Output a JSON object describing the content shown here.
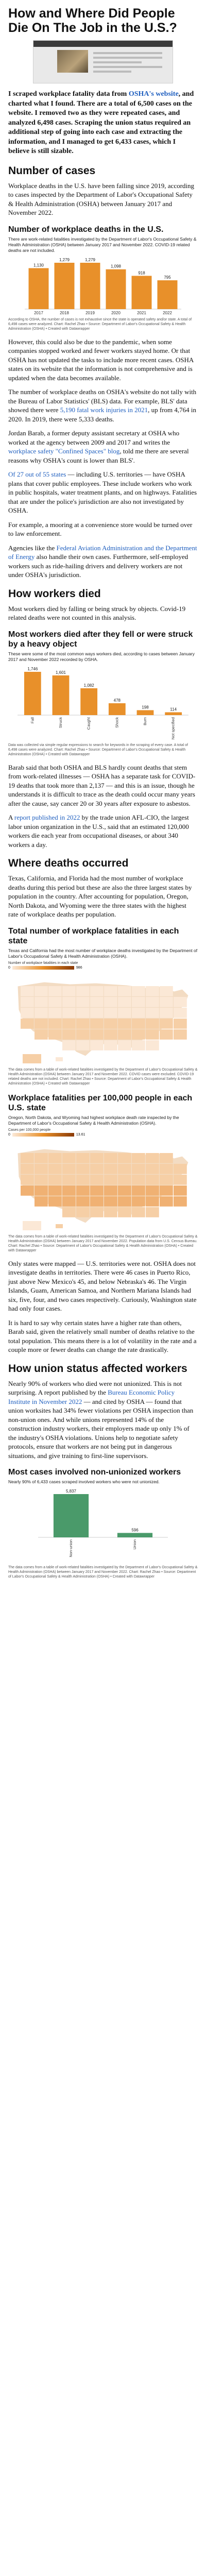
{
  "article": {
    "title": "How and Where Did People Die On The Job in the U.S.?",
    "intro_pre": "I scraped workplace fatality data from ",
    "intro_link": "OSHA's website",
    "intro_post": ", and charted what I found. There are a total of 6,500 cases on the website. I removed two as they were repeated cases, and analyzed 6,498 cases. Scraping the union status required an additional step of going into each case and extracting the information, and I managed to get 6,433 cases, which I believe is still sizable."
  },
  "s1": {
    "heading": "Number of cases",
    "p1": "Workplace deaths in the U.S. have been falling since 2019, according to cases inspected by the Department of Labor's Occupational Safety & Health Administration (OSHA) between January 2017 and November 2022.",
    "chart_title": "Number of workplace deaths in the U.S.",
    "chart_sub": "There are work-related fatalities investigated by the Department of Labor's Occupational Safety & Health Administration (OSHA) between January 2017 and November 2022. COVID-19 related deaths are not included.",
    "caption": "According to OSHA, the number of cases is not exhaustive since the state is operated safety and/or state. A total of 6,498 cases were analyzed. Chart: Rachel Zhao • Source: Department of Labor's Occupational Safety & Health Administration (OSHA) • Created with Datawrapper",
    "p2": "However, this could also be due to the pandemic, when some companies stopped worked and fewer workers stayed home. Or that OSHA has not updated the tasks to include more recent cases. OSHA states on its website that the information is not comprehensive and is updated when the data becomes available.",
    "p3_pre": "The number of workplace deaths on OSHA's website do not tally with the Bureau of Labor Statistics' (BLS) data. For example, BLS' data showed there were ",
    "p3_link": "5,190 fatal work injuries in 2021",
    "p3_post": ", up from 4,764 in 2020. In 2019, there were 5,333 deaths.",
    "p4_pre": "Jordan Barab, a former deputy assistant secretary at OSHA who worked at the agency between 2009 and 2017 and writes the ",
    "p4_link": "workplace safety \"Confined Spaces\" blog",
    "p4_post": ", told me there are several reasons why OSHA's count is lower than BLS'.",
    "p5_pre": "",
    "p5_link": "Of 27 out of 55 states",
    "p5_post": " — including U.S. territories — have OSHA plans that cover public employees. These include workers who work in public hospitals, water treatment plants, and on highways. Fatalities that are under the police's jurisdiction are also not investigated by OSHA.",
    "p6": "For example, a mooring at a convenience store would be turned over to law enforcement.",
    "p7_pre": "Agencies like the ",
    "p7_link": "Federal Aviation Administration and the Department of Energy",
    "p7_post": " also handle their own cases. Furthermore, self-employed workers such as ride-hailing drivers and delivery workers are not under OSHA's jurisdiction."
  },
  "chart_data": [
    {
      "type": "bar",
      "title": "Number of workplace deaths in the U.S.",
      "categories": [
        "2017",
        "2018",
        "2019",
        "2020",
        "2021",
        "2022"
      ],
      "values": [
        1130,
        1279,
        1279,
        1098,
        918,
        795
      ],
      "colors": {
        "bar": "#e8902a"
      }
    },
    {
      "type": "bar",
      "title": "Most workers died after they fell or were struck by a heavy object",
      "categories": [
        "Fall",
        "Struck",
        "Caught",
        "Shock",
        "Burn",
        "Not specified"
      ],
      "values": [
        1746,
        1601,
        1082,
        478,
        198,
        114
      ],
      "colors": {
        "bar": "#e8902a"
      }
    },
    {
      "type": "bar",
      "title": "Most cases involved non-unionized workers",
      "categories": [
        "Non-union",
        "Union"
      ],
      "values": [
        5837,
        596
      ],
      "colors": {
        "bar": "#4a9a6a"
      }
    }
  ],
  "s2": {
    "heading": "How workers died",
    "p1": "Most workers died by falling or being struck by objects. Covid-19 related deaths were not counted in this analysis.",
    "chart_title": "Most workers died after they fell or were struck by a heavy object",
    "chart_sub": "These were some of the most common ways workers died, according to cases between January 2017 and November 2022 recorded by OSHA.",
    "caption": "Data was collected via simple regular expressions to search for keywords in the scraping of every case. A total of 6,498 cases were analyzed. Chart: Rachel Zhao • Source: Department of Labor's Occupational Safety & Health Administration (OSHA) • Created with Datawrapper",
    "p2": "Barab said that both OSHA and BLS hardly count deaths that stem from work-related illnesses — OSHA has a separate task for COVID-19 deaths that took more than 2,137 — and this is an issue, though he understands it is difficult to trace as the death could occur many years after the cause, say cancer 20 or 30 years after exposure to asbestos.",
    "p3_pre": "A ",
    "p3_link": "report published in 2022",
    "p3_post": " by the trade union AFL-CIO, the largest labor union organization in the U.S., said that an estimated 120,000 workers die each year from occupational diseases, or about 340 workers a day."
  },
  "s3": {
    "heading": "Where deaths occurred",
    "p1": "Texas, California, and Florida had the most number of workplace deaths during this period but these are also the three largest states by population in the country. After accounting for population, Oregon, North Dakota, and Wyoming were the three states with the highest rate of workplace deaths per population.",
    "chart1_title": "Total number of workplace fatalities in each state",
    "chart1_sub": "Texas and California had the most number of workplace deaths investigated by the Department of Labor's Occupational Safety & Health Administration (OSHA).",
    "legend1_label": "Number of workplace fatalities in each state",
    "legend1_min": "0",
    "legend1_max": "986",
    "caption1": "The data comes from a table of work-related fatalities investigated by the Department of Labor's Occupational Safety & Health Administration (OSHA) between January 2017 and November 2022. COVID cases were excluded. COVID-19 related deaths are not included. Chart: Rachel Zhao • Source: Department of Labor's Occupational Safety & Health Administration (OSHA) • Created with Datawrapper",
    "chart2_title": "Workplace fatalities per 100,000 people in each U.S. state",
    "chart2_sub": "Oregon, North Dakota, and Wyoming had highest workplace death rate inspected by the Department of Labor's Occupational Safety & Health Administration (OSHA).",
    "legend2_label": "Cases per 100,000 people",
    "legend2_min": "0",
    "legend2_max": "13.61",
    "caption2": "The data comes from a table of work-related fatalities investigated by the Department of Labor's Occupational Safety & Health Administration (OSHA) between January 2017 and November 2022. Population data from U.S. Census Bureau. Chart: Rachel Zhao • Source: Department of Labor's Occupational Safety & Health Administration (OSHA) • Created with Datawrapper",
    "p2": "Only states were mapped — U.S. territories were not. OSHA does not investigate deaths in territories. There were 46 cases in Puerto Rico, just above New Mexico's 45, and below Nebraska's 46. The Virgin Islands, Guam, American Samoa, and Northern Mariana Islands had six, five, four, and two cases respectively. Curiously, Washington state had only four cases.",
    "p3": "It is hard to say why certain states have a higher rate than others, Barab said, given the relatively small number of deaths relative to the total population. This means there is a lot of volatility in the rate and a couple more or fewer deaths can change the rate drastically."
  },
  "s4": {
    "heading": "How union status affected workers",
    "p1": "Nearly 90% of workers who died were not unionized. This is not surprising. A report published by the ",
    "p1_link": "Bureau Economic Policy Institute in November 2022",
    "p1_post": " — and cited by OSHA — found that union worksites had 34% fewer violations per OSHA inspection than non-union ones. And while unions represented 14% of the construction industry workers, their employers made up only 1% of the industry's OSHA violations. Unions help to negotiate safety protocols, ensure that workers are not being put in dangerous situations, and give training to first-line supervisors.",
    "chart_title": "Most cases involved non-unionized workers",
    "chart_sub": "Nearly 90% of 6,433 cases scraped involved workers who were not unionized.",
    "caption": "The data comes from a table of work-related fatalities investigated by the Department of Labor's Occupational Safety & Health Administration (OSHA) between January 2017 and November 2022. Chart: Rachel Zhao • Source: Department of Labor's Occupational Safety & Health Administration (OSHA) • Created with Datawrapper"
  }
}
